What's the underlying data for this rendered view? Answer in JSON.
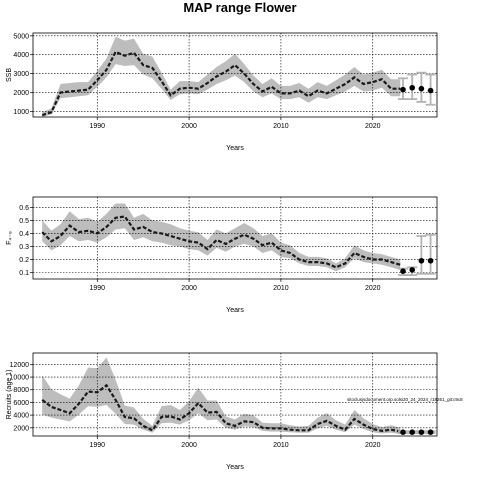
{
  "chart_data": [
    {
      "type": "line",
      "title": "MAP range Flower",
      "xlabel": "Years",
      "ylabel": "SSB",
      "xlim": [
        1983,
        2027
      ],
      "ylim": [
        700,
        5150
      ],
      "xticks": [
        1990,
        2000,
        2010,
        2020
      ],
      "yticks": [
        1000,
        2000,
        3000,
        4000,
        5000
      ],
      "grid": true,
      "x": [
        1984,
        1985,
        1986,
        1987,
        1988,
        1989,
        1990,
        1991,
        1992,
        1993,
        1994,
        1995,
        1996,
        1997,
        1998,
        1999,
        2000,
        2001,
        2002,
        2003,
        2004,
        2005,
        2006,
        2007,
        2008,
        2009,
        2010,
        2011,
        2012,
        2013,
        2014,
        2015,
        2016,
        2017,
        2018,
        2019,
        2020,
        2021,
        2022,
        2023
      ],
      "median": [
        800,
        950,
        2000,
        2050,
        2100,
        2150,
        2650,
        3200,
        4150,
        3950,
        4100,
        3450,
        3300,
        2600,
        1850,
        2200,
        2250,
        2200,
        2500,
        2850,
        3100,
        3450,
        3000,
        2450,
        2050,
        2300,
        1950,
        1950,
        2100,
        1800,
        2100,
        1950,
        2200,
        2450,
        2800,
        2450,
        2550,
        2700,
        2200,
        2200
      ],
      "lower": [
        700,
        850,
        1700,
        1750,
        1800,
        1850,
        2300,
        2800,
        3500,
        3400,
        3450,
        2950,
        2750,
        2200,
        1600,
        1900,
        1950,
        1900,
        2150,
        2450,
        2650,
        2900,
        2550,
        2050,
        1750,
        1950,
        1650,
        1650,
        1750,
        1450,
        1750,
        1650,
        1850,
        2050,
        2350,
        2050,
        2100,
        2250,
        1800,
        1800
      ],
      "upper": [
        950,
        1150,
        2450,
        2500,
        2550,
        2550,
        3150,
        3800,
        4950,
        4750,
        4850,
        4050,
        3900,
        3050,
        2150,
        2600,
        2600,
        2550,
        2950,
        3350,
        3650,
        4050,
        3500,
        2900,
        2450,
        2750,
        2350,
        2350,
        2500,
        2200,
        2550,
        2350,
        2650,
        2950,
        3350,
        2950,
        3050,
        3200,
        2700,
        2700
      ],
      "forecast": {
        "x": [
          2023.3,
          2024.3,
          2025.3,
          2026.3
        ],
        "median": [
          2150,
          2250,
          2200,
          2100
        ],
        "lower": [
          1650,
          1650,
          1500,
          1350
        ],
        "upper": [
          2750,
          2950,
          3050,
          2950
        ]
      }
    },
    {
      "type": "line",
      "title": "",
      "xlabel": "Years",
      "ylabel": "F₄₋₈",
      "xlim": [
        1983,
        2027
      ],
      "ylim": [
        0.05,
        0.68
      ],
      "xticks": [
        1990,
        2000,
        2010,
        2020
      ],
      "yticks": [
        0.1,
        0.2,
        0.3,
        0.4,
        0.5,
        0.6
      ],
      "ytick_labels": [
        "0.1",
        "0.2",
        "0.3",
        "0.4",
        "0.5",
        "0.6"
      ],
      "grid": true,
      "x": [
        1984,
        1985,
        1986,
        1987,
        1988,
        1989,
        1990,
        1991,
        1992,
        1993,
        1994,
        1995,
        1996,
        1997,
        1998,
        1999,
        2000,
        2001,
        2002,
        2003,
        2004,
        2005,
        2006,
        2007,
        2008,
        2009,
        2010,
        2011,
        2012,
        2013,
        2014,
        2015,
        2016,
        2017,
        2018,
        2019,
        2020,
        2021,
        2022,
        2023
      ],
      "median": [
        0.41,
        0.34,
        0.38,
        0.46,
        0.41,
        0.42,
        0.4,
        0.45,
        0.52,
        0.53,
        0.43,
        0.45,
        0.41,
        0.4,
        0.38,
        0.36,
        0.34,
        0.33,
        0.28,
        0.35,
        0.32,
        0.36,
        0.39,
        0.36,
        0.31,
        0.33,
        0.27,
        0.25,
        0.2,
        0.18,
        0.18,
        0.17,
        0.14,
        0.17,
        0.25,
        0.22,
        0.2,
        0.2,
        0.18,
        0.16
      ],
      "lower": [
        0.34,
        0.27,
        0.31,
        0.38,
        0.34,
        0.35,
        0.33,
        0.37,
        0.43,
        0.44,
        0.35,
        0.37,
        0.34,
        0.33,
        0.31,
        0.3,
        0.28,
        0.27,
        0.23,
        0.29,
        0.26,
        0.3,
        0.32,
        0.3,
        0.25,
        0.27,
        0.22,
        0.21,
        0.17,
        0.15,
        0.15,
        0.14,
        0.11,
        0.14,
        0.21,
        0.18,
        0.17,
        0.16,
        0.14,
        0.12
      ],
      "upper": [
        0.5,
        0.42,
        0.47,
        0.57,
        0.51,
        0.52,
        0.49,
        0.55,
        0.63,
        0.63,
        0.52,
        0.55,
        0.5,
        0.49,
        0.47,
        0.44,
        0.42,
        0.41,
        0.35,
        0.43,
        0.4,
        0.44,
        0.48,
        0.44,
        0.38,
        0.4,
        0.33,
        0.31,
        0.25,
        0.22,
        0.22,
        0.21,
        0.17,
        0.21,
        0.31,
        0.27,
        0.25,
        0.24,
        0.22,
        0.2
      ],
      "forecast": {
        "x": [
          2023.3,
          2024.3,
          2025.3,
          2026.3
        ],
        "median": [
          0.11,
          0.12,
          0.19,
          0.19
        ],
        "lower": [
          0.08,
          0.08,
          0.09,
          0.09
        ],
        "upper": [
          0.13,
          0.14,
          0.38,
          0.39
        ]
      }
    },
    {
      "type": "line",
      "title": "",
      "xlabel": "Years",
      "ylabel": "Recruits (age 1)",
      "xlim": [
        1983,
        2027
      ],
      "ylim": [
        700,
        13800
      ],
      "xticks": [
        1990,
        2000,
        2010,
        2020
      ],
      "yticks": [
        2000,
        4000,
        6000,
        8000,
        10000,
        12000
      ],
      "ytick_labels": [
        "2000",
        "4000",
        "6000",
        "8000",
        "10000",
        "12000"
      ],
      "grid": true,
      "annotation": "sitoclusjsdocument.orp.solsi20_24_2024_r18261_git:c9c8",
      "x": [
        1984,
        1985,
        1986,
        1987,
        1988,
        1989,
        1990,
        1991,
        1992,
        1993,
        1994,
        1995,
        1996,
        1997,
        1998,
        1999,
        2000,
        2001,
        2002,
        2003,
        2004,
        2005,
        2006,
        2007,
        2008,
        2009,
        2010,
        2011,
        2012,
        2013,
        2014,
        2015,
        2016,
        2017,
        2018,
        2019,
        2020,
        2021,
        2022,
        2023
      ],
      "median": [
        6400,
        5300,
        4800,
        4300,
        5800,
        7700,
        7600,
        8700,
        6400,
        3700,
        3500,
        2300,
        1600,
        3700,
        3800,
        3300,
        4300,
        5900,
        4400,
        4500,
        2700,
        2300,
        3000,
        2900,
        2000,
        1900,
        1900,
        1700,
        1600,
        1600,
        2600,
        3100,
        2300,
        1700,
        3400,
        2500,
        1800,
        1500,
        1700,
        1400
      ],
      "lower": [
        4100,
        3600,
        3300,
        3000,
        4100,
        5400,
        5300,
        5600,
        4200,
        2600,
        2500,
        1700,
        1200,
        2700,
        2800,
        2500,
        3200,
        4300,
        3200,
        3300,
        2000,
        1700,
        2200,
        2100,
        1500,
        1400,
        1400,
        1300,
        1200,
        1200,
        1900,
        2300,
        1700,
        1300,
        2500,
        1800,
        1300,
        1100,
        1200,
        1000
      ],
      "upper": [
        10300,
        8100,
        7300,
        6600,
        8700,
        11500,
        11400,
        13100,
        9600,
        5500,
        5200,
        3400,
        2300,
        5400,
        5600,
        4800,
        6200,
        8300,
        6300,
        6300,
        3800,
        3300,
        4200,
        4000,
        2800,
        2700,
        2700,
        2400,
        2200,
        2300,
        3600,
        4300,
        3200,
        2500,
        4800,
        3500,
        2600,
        2100,
        2400,
        2000
      ],
      "forecast": {
        "x": [
          2023.3,
          2024.3,
          2025.3,
          2026.3
        ],
        "median": [
          1300,
          1300,
          1300,
          1300
        ],
        "lower": [
          1150,
          1150,
          1150,
          1150
        ],
        "upper": [
          1450,
          1450,
          1450,
          1450
        ]
      }
    }
  ]
}
